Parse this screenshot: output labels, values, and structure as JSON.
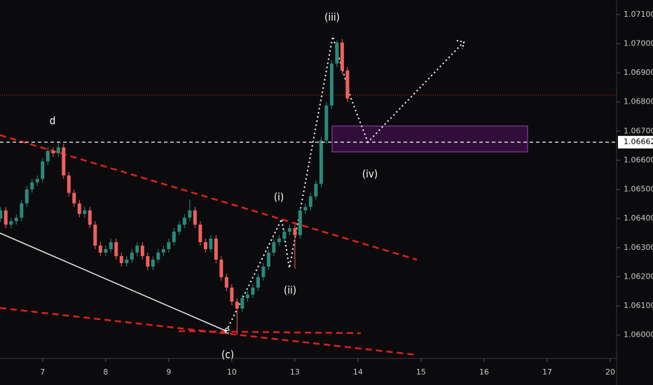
{
  "chart_data": {
    "type": "candlestick",
    "up_color": "#2a8a7a",
    "down_color": "#f0605d",
    "xlim": [
      -8.1,
      109.2
    ],
    "ylim": [
      1.0592,
      1.0715
    ],
    "xticks": [
      {
        "value": 0,
        "label": "7"
      },
      {
        "value": 12,
        "label": "8"
      },
      {
        "value": 24,
        "label": "9"
      },
      {
        "value": 36,
        "label": "10"
      },
      {
        "value": 48,
        "label": "13"
      },
      {
        "value": 60,
        "label": "14"
      },
      {
        "value": 72,
        "label": "15"
      },
      {
        "value": 84,
        "label": "16"
      },
      {
        "value": 96,
        "label": "17"
      },
      {
        "value": 108,
        "label": "20"
      }
    ],
    "yticks": [
      {
        "value": 1.06,
        "label": "1.06000"
      },
      {
        "value": 1.061,
        "label": "1.06100"
      },
      {
        "value": 1.062,
        "label": "1.06200"
      },
      {
        "value": 1.063,
        "label": "1.06300"
      },
      {
        "value": 1.064,
        "label": "1.06400"
      },
      {
        "value": 1.065,
        "label": "1.06500"
      },
      {
        "value": 1.066,
        "label": "1.06600"
      },
      {
        "value": 1.067,
        "label": "1.06700"
      },
      {
        "value": 1.068,
        "label": "1.06800"
      },
      {
        "value": 1.069,
        "label": "1.06900"
      },
      {
        "value": 1.07,
        "label": "1.07000"
      },
      {
        "value": 1.071,
        "label": "1.07100"
      }
    ],
    "last_price": {
      "value": 1.06662,
      "label": "1.06662"
    },
    "price_line": 1.06824,
    "annotations": [
      "d",
      "(iii)",
      "(i)",
      "(ii)",
      "(iv)",
      "e",
      "(c)"
    ],
    "x": [
      -8,
      -7,
      -6,
      -5,
      -4,
      -3,
      -2,
      -1,
      0,
      1,
      2,
      3,
      4,
      5,
      6,
      7,
      8,
      9,
      10,
      11,
      12,
      13,
      14,
      15,
      16,
      17,
      18,
      19,
      20,
      21,
      22,
      23,
      24,
      25,
      26,
      27,
      28,
      29,
      30,
      31,
      32,
      33,
      34,
      35,
      36,
      37,
      38,
      39,
      40,
      41,
      42,
      43,
      44,
      45,
      46,
      47,
      48,
      49,
      50,
      51,
      52,
      53,
      54,
      55,
      56,
      57,
      58
    ],
    "open": [
      1.064,
      1.06428,
      1.06379,
      1.06391,
      1.06403,
      1.06452,
      1.065,
      1.06524,
      1.06536,
      1.06596,
      1.06632,
      1.06624,
      1.06644,
      1.06548,
      1.06488,
      1.06452,
      1.06416,
      1.06428,
      1.06379,
      1.06307,
      1.06283,
      1.06295,
      1.06319,
      1.06271,
      1.06247,
      1.06259,
      1.06283,
      1.06307,
      1.06271,
      1.06235,
      1.06259,
      1.06283,
      1.06295,
      1.06319,
      1.06355,
      1.06379,
      1.06403,
      1.06428,
      1.06379,
      1.06319,
      1.06295,
      1.06331,
      1.06259,
      1.06199,
      1.06163,
      1.06115,
      1.06091,
      1.06127,
      1.06139,
      1.06163,
      1.06199,
      1.06235,
      1.06283,
      1.06319,
      1.06331,
      1.06355,
      1.06367,
      1.06343,
      1.06428,
      1.0644,
      1.06476,
      1.06519,
      1.06668,
      1.06788,
      1.06932,
      1.07004,
      1.06908
    ],
    "high": [
      1.0644,
      1.0644,
      1.06403,
      1.06415,
      1.06464,
      1.06512,
      1.06536,
      1.06548,
      1.06608,
      1.06644,
      1.06644,
      1.0666,
      1.06656,
      1.0656,
      1.065,
      1.06464,
      1.0644,
      1.0644,
      1.06391,
      1.06319,
      1.06307,
      1.06331,
      1.06331,
      1.06283,
      1.06271,
      1.06295,
      1.06319,
      1.06319,
      1.06283,
      1.06271,
      1.06295,
      1.06307,
      1.06331,
      1.06367,
      1.06391,
      1.06415,
      1.06465,
      1.0644,
      1.06391,
      1.06331,
      1.06343,
      1.06343,
      1.06271,
      1.06211,
      1.06175,
      1.06127,
      1.06139,
      1.06151,
      1.06175,
      1.06211,
      1.06247,
      1.06295,
      1.06331,
      1.06343,
      1.06367,
      1.06379,
      1.06379,
      1.0644,
      1.06452,
      1.06488,
      1.06531,
      1.0668,
      1.068,
      1.06944,
      1.07012,
      1.07016,
      1.0692
    ],
    "low": [
      1.06388,
      1.06367,
      1.06367,
      1.06379,
      1.06391,
      1.0644,
      1.06488,
      1.06512,
      1.06524,
      1.06584,
      1.06612,
      1.06612,
      1.06536,
      1.06476,
      1.0644,
      1.06404,
      1.06404,
      1.06367,
      1.06295,
      1.06271,
      1.06271,
      1.06283,
      1.06259,
      1.06235,
      1.06235,
      1.06247,
      1.06271,
      1.06259,
      1.06223,
      1.06223,
      1.06247,
      1.06271,
      1.06283,
      1.06307,
      1.06343,
      1.06367,
      1.06391,
      1.06367,
      1.06307,
      1.06283,
      1.06283,
      1.06247,
      1.06187,
      1.06151,
      1.06103,
      1.06,
      1.06079,
      1.06115,
      1.06127,
      1.06151,
      1.06187,
      1.06223,
      1.06271,
      1.06307,
      1.06319,
      1.06343,
      1.06228,
      1.06331,
      1.06416,
      1.06428,
      1.06464,
      1.06507,
      1.06656,
      1.06776,
      1.0692,
      1.06896,
      1.068
    ],
    "close": [
      1.06428,
      1.06379,
      1.06391,
      1.06403,
      1.06452,
      1.065,
      1.06524,
      1.06536,
      1.06596,
      1.06632,
      1.06624,
      1.06644,
      1.06548,
      1.06488,
      1.06452,
      1.06416,
      1.06428,
      1.06379,
      1.06307,
      1.06283,
      1.06295,
      1.06319,
      1.06271,
      1.06247,
      1.06259,
      1.06283,
      1.06307,
      1.06271,
      1.06235,
      1.06259,
      1.06283,
      1.06295,
      1.06319,
      1.06355,
      1.06379,
      1.06403,
      1.06428,
      1.06379,
      1.06319,
      1.06295,
      1.06331,
      1.06259,
      1.06199,
      1.06163,
      1.06115,
      1.06091,
      1.06127,
      1.06139,
      1.06163,
      1.06199,
      1.06235,
      1.06283,
      1.06319,
      1.06331,
      1.06355,
      1.06367,
      1.06343,
      1.06428,
      1.0644,
      1.06476,
      1.06519,
      1.06668,
      1.06788,
      1.06932,
      1.07004,
      1.06908,
      1.06812
    ]
  }
}
